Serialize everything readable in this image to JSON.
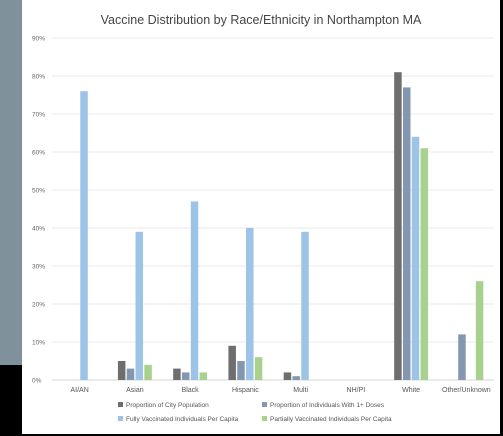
{
  "chart_data": {
    "type": "bar",
    "title": "Vaccine Distribution by Race/Ethnicity in Northampton MA",
    "xlabel": "",
    "ylabel": "",
    "ylim": [
      0,
      0.9
    ],
    "yticks": [
      0,
      0.1,
      0.2,
      0.3,
      0.4,
      0.5,
      0.6,
      0.7,
      0.8,
      0.9
    ],
    "ytick_labels": [
      "0%",
      "10%",
      "20%",
      "30%",
      "40%",
      "50%",
      "60%",
      "70%",
      "80%",
      "90%"
    ],
    "grid": true,
    "legend_position": "bottom",
    "categories": [
      "AI/AN",
      "Asian",
      "Black",
      "Hispanic",
      "Multi",
      "NH/PI",
      "White",
      "Other/Unknown"
    ],
    "series": [
      {
        "name": "Proportion of City Population",
        "color": "#6e6e6e",
        "values": [
          0,
          0.05,
          0.03,
          0.09,
          0.02,
          0,
          0.81,
          0
        ]
      },
      {
        "name": "Proportion of Individuals With 1+ Doses",
        "color": "#8497b0",
        "values": [
          0,
          0.03,
          0.02,
          0.05,
          0.01,
          0,
          0.77,
          0.12
        ]
      },
      {
        "name": "Fully Vaccinated Individuals Per Capita",
        "color": "#9dc3e6",
        "values": [
          0.76,
          0.39,
          0.47,
          0.4,
          0.39,
          0,
          0.64,
          0
        ]
      },
      {
        "name": "Partially Vaccinated Individuals Per Capita",
        "color": "#a9d18e",
        "values": [
          0,
          0.04,
          0.02,
          0.06,
          0,
          0,
          0.61,
          0.26
        ]
      }
    ]
  }
}
